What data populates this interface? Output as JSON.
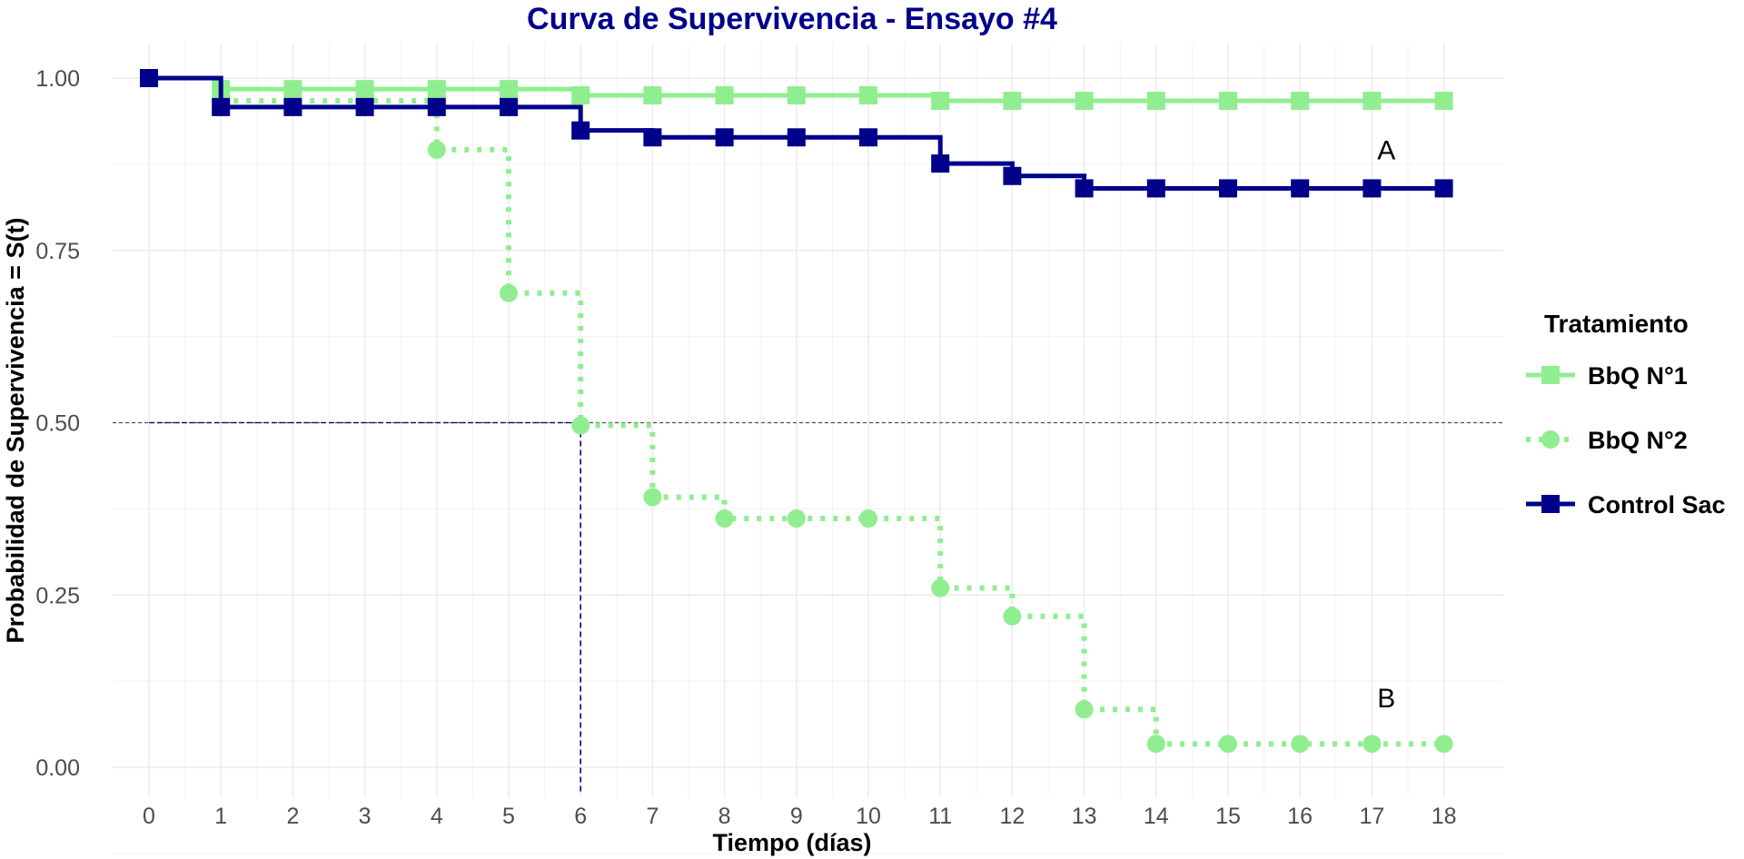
{
  "chart_data": {
    "type": "line",
    "title": "Curva de Supervivencia - Ensayo #4",
    "xlabel": "Tiempo (días)",
    "ylabel": "Probabilidad de Supervivencia = S(t)",
    "xlim": [
      -0.5,
      18.9
    ],
    "ylim": [
      -0.03,
      1.05
    ],
    "x_ticks": [
      0,
      1,
      2,
      3,
      4,
      5,
      6,
      7,
      8,
      9,
      10,
      11,
      12,
      13,
      14,
      15,
      16,
      17,
      18
    ],
    "x_tick_labels": [
      "0",
      "1",
      "2",
      "3",
      "4",
      "5",
      "6",
      "7",
      "8",
      "9",
      "10",
      "11",
      "12",
      "13",
      "14",
      "15",
      "16",
      "17",
      "18"
    ],
    "y_ticks": [
      0,
      0.25,
      0.5,
      0.75,
      1
    ],
    "y_tick_labels": [
      "0.00",
      "0.25",
      "0.50",
      "0.75",
      "1.00"
    ],
    "grid": true,
    "step": true,
    "legend_title": "Tratamiento",
    "legend_position": "right",
    "median_line": {
      "y": 0.5,
      "x": 6
    },
    "series": [
      {
        "name": "BbQ N°1",
        "color": "#90EE90",
        "linetype": "solid",
        "marker": "square",
        "x": [
          0,
          1,
          2,
          3,
          4,
          5,
          6,
          7,
          8,
          9,
          10,
          11,
          12,
          13,
          14,
          15,
          16,
          17,
          18
        ],
        "y": [
          1.0,
          0.984,
          0.984,
          0.984,
          0.984,
          0.984,
          0.975,
          0.975,
          0.975,
          0.975,
          0.975,
          0.967,
          0.967,
          0.967,
          0.967,
          0.967,
          0.967,
          0.967,
          0.967
        ]
      },
      {
        "name": "BbQ N°2",
        "color": "#90EE90",
        "linetype": "dotted",
        "marker": "circle",
        "x": [
          1,
          2,
          3,
          4,
          5,
          6,
          7,
          8,
          9,
          10,
          11,
          12,
          13,
          14,
          15,
          16,
          17,
          18
        ],
        "y": [
          0.967,
          0.967,
          0.967,
          0.896,
          0.688,
          0.496,
          0.392,
          0.361,
          0.361,
          0.361,
          0.26,
          0.219,
          0.084,
          0.034,
          0.034,
          0.034,
          0.034,
          0.034
        ]
      },
      {
        "name": "Control Sac",
        "color": "#00008B",
        "linetype": "solid",
        "marker": "square",
        "x": [
          0,
          1,
          2,
          3,
          4,
          5,
          6,
          7,
          8,
          9,
          10,
          11,
          12,
          13,
          14,
          15,
          16,
          17,
          18
        ],
        "y": [
          1.0,
          0.958,
          0.958,
          0.958,
          0.958,
          0.958,
          0.924,
          0.914,
          0.914,
          0.914,
          0.914,
          0.876,
          0.858,
          0.84,
          0.84,
          0.84,
          0.84,
          0.84,
          0.84
        ]
      }
    ],
    "annotations": [
      {
        "text": "A",
        "x": 17.2,
        "y": 0.895
      },
      {
        "text": "B",
        "x": 17.2,
        "y": 0.1
      }
    ]
  }
}
